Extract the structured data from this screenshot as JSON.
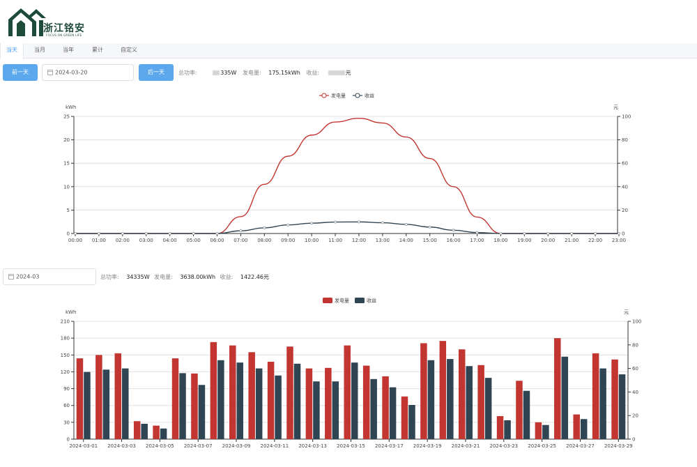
{
  "logo": {
    "text": "浙江铭安",
    "subtitle": "FOCUS ON GREEN LIFE",
    "color": "#1e4a3a"
  },
  "tabs": [
    {
      "label": "当天",
      "active": true
    },
    {
      "label": "当月",
      "active": false
    },
    {
      "label": "当年",
      "active": false
    },
    {
      "label": "累计",
      "active": false
    },
    {
      "label": "自定义",
      "active": false
    }
  ],
  "day_section": {
    "prev_label": "前一天",
    "next_label": "后一天",
    "date_value": "2024-03-20",
    "power_label": "总功率:",
    "power_value": "335W",
    "generation_label": "发电量:",
    "generation_value": "175.15kWh",
    "income_label": "收益:",
    "income_value": "元"
  },
  "month_section": {
    "date_value": "2024-03",
    "power_label": "总功率:",
    "power_value": "34335W",
    "generation_label": "发电量:",
    "generation_value": "3638.00kWh",
    "income_label": "收益:",
    "income_value": "1422.46元"
  },
  "colors": {
    "generation": "#c23531",
    "income": "#2f4554",
    "accent": "#409eff",
    "button": "#5ba8ec"
  },
  "chart_data": [
    {
      "type": "line",
      "legend": [
        "发电量",
        "收益"
      ],
      "legend_position": "top-center",
      "yleft_unit": "kWh",
      "yright_unit": "元",
      "yleft_lim": [
        0,
        25
      ],
      "yleft_ticks": [
        0,
        5,
        10,
        15,
        20,
        25
      ],
      "yright_lim": [
        0,
        100
      ],
      "yright_ticks": [
        0,
        20,
        40,
        60,
        80,
        100
      ],
      "x": [
        "00:00",
        "01:00",
        "02:00",
        "03:00",
        "04:00",
        "05:00",
        "06:00",
        "07:00",
        "08:00",
        "09:00",
        "10:00",
        "11:00",
        "12:00",
        "13:00",
        "14:00",
        "15:00",
        "16:00",
        "17:00",
        "18:00",
        "19:00",
        "20:00",
        "21:00",
        "22:00",
        "23:00"
      ],
      "series": [
        {
          "name": "发电量",
          "axis": "left",
          "values": [
            0,
            0,
            0,
            0,
            0,
            0,
            0,
            3.6,
            10.5,
            16.5,
            21.0,
            23.8,
            24.6,
            23.6,
            20.6,
            16.0,
            10.0,
            3.5,
            0,
            0,
            0,
            0,
            0,
            0
          ]
        },
        {
          "name": "收益",
          "axis": "right",
          "values": [
            0,
            0,
            0,
            0,
            0,
            0,
            0,
            2.3,
            4.8,
            7.3,
            8.8,
            9.8,
            9.9,
            9.2,
            7.8,
            5.5,
            2.8,
            0.8,
            0,
            0,
            0,
            0,
            0,
            0
          ]
        }
      ],
      "grid": true
    },
    {
      "type": "bar",
      "legend": [
        "发电量",
        "收益"
      ],
      "legend_position": "top-center",
      "yleft_unit": "kWh",
      "yright_unit": "元",
      "yleft_lim": [
        0,
        210
      ],
      "yleft_ticks": [
        0,
        30,
        60,
        90,
        120,
        150,
        180,
        210
      ],
      "yright_lim": [
        0,
        100
      ],
      "yright_ticks": [
        0,
        20,
        40,
        60,
        80,
        100
      ],
      "categories": [
        "2024-03-01",
        "2024-03-02",
        "2024-03-03",
        "2024-03-04",
        "2024-03-05",
        "2024-03-06",
        "2024-03-07",
        "2024-03-08",
        "2024-03-09",
        "2024-03-10",
        "2024-03-11",
        "2024-03-12",
        "2024-03-13",
        "2024-03-14",
        "2024-03-15",
        "2024-03-16",
        "2024-03-17",
        "2024-03-18",
        "2024-03-19",
        "2024-03-20",
        "2024-03-21",
        "2024-03-22",
        "2024-03-23",
        "2024-03-24",
        "2024-03-25",
        "2024-03-26",
        "2024-03-27",
        "2024-03-28",
        "2024-03-29"
      ],
      "tick_labels": [
        "2024-03-01",
        "2024-03-03",
        "2024-03-05",
        "2024-03-07",
        "2024-03-09",
        "2024-03-11",
        "2024-03-13",
        "2024-03-15",
        "2024-03-17",
        "2024-03-19",
        "2024-03-21",
        "2024-03-23",
        "2024-03-25",
        "2024-03-27",
        "2024-03-29"
      ],
      "series": [
        {
          "name": "发电量",
          "axis": "left",
          "values": [
            144,
            150,
            153,
            32,
            24,
            144,
            117,
            173,
            167,
            155,
            138,
            165,
            126,
            127,
            167,
            131,
            112,
            76,
            171,
            175,
            160,
            132,
            41,
            104,
            30,
            180,
            44,
            153,
            142
          ]
        },
        {
          "name": "收益",
          "axis": "right",
          "values": [
            57,
            59,
            60,
            13,
            9,
            56,
            46,
            67,
            65,
            60,
            54,
            64,
            49,
            49,
            65,
            51,
            44,
            29,
            67,
            68,
            62,
            52,
            16,
            41,
            12,
            70,
            17,
            60,
            55
          ]
        }
      ],
      "grid": true
    }
  ]
}
